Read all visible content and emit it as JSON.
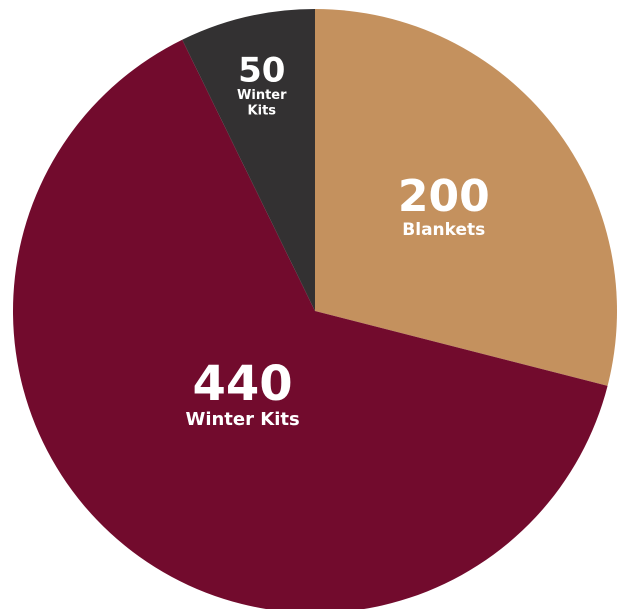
{
  "chart_data": {
    "type": "pie",
    "slices": [
      {
        "value": 200,
        "label": "Blankets",
        "color": "#C4915E"
      },
      {
        "value": 440,
        "label": "Winter Kits",
        "color": "#720B2D"
      },
      {
        "value": 50,
        "label": "Winter Kits",
        "color": "#333132"
      }
    ],
    "start": "top",
    "direction": "clockwise"
  }
}
